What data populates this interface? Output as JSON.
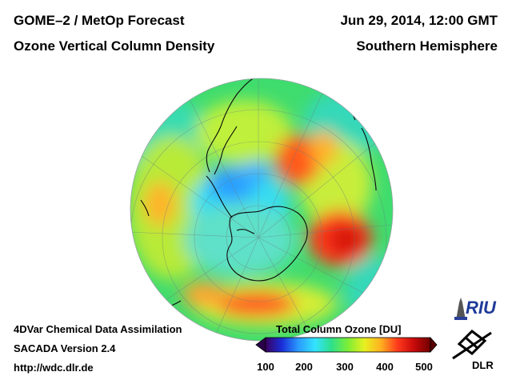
{
  "header": {
    "title_line1": "GOME–2 / MetOp Forecast",
    "title_line2": "Ozone Vertical Column Density",
    "datetime": "Jun 29, 2014, 12:00 GMT",
    "hemisphere": "Southern Hemisphere"
  },
  "footer": {
    "line1": "4DVar Chemical Data Assimilation",
    "line2": "SACADA Version 2.4",
    "line3": "http://wdc.dlr.de"
  },
  "colorbar": {
    "title": "Total Column Ozone [DU]",
    "ticks": [
      "100",
      "200",
      "300",
      "400",
      "500"
    ],
    "colors": [
      "#3a0060",
      "#1a2fd8",
      "#2a9cff",
      "#33e3ff",
      "#2ee08a",
      "#7dee36",
      "#e8f020",
      "#ffb020",
      "#ff3a1c",
      "#c80a0a",
      "#700000"
    ]
  },
  "logos": {
    "riu": "RIU",
    "dlr": "DLR"
  },
  "map": {
    "projection": "orthographic south polar",
    "land_outline_color": "#0a0a0a",
    "regions": [
      {
        "name": "low-ozone-hole",
        "ozone_du": 230
      },
      {
        "name": "high-ozone-pacific",
        "ozone_du": 440
      },
      {
        "name": "high-ozone-indian",
        "ozone_du": 450
      },
      {
        "name": "high-ozone-atlantic",
        "ozone_du": 420
      }
    ]
  }
}
